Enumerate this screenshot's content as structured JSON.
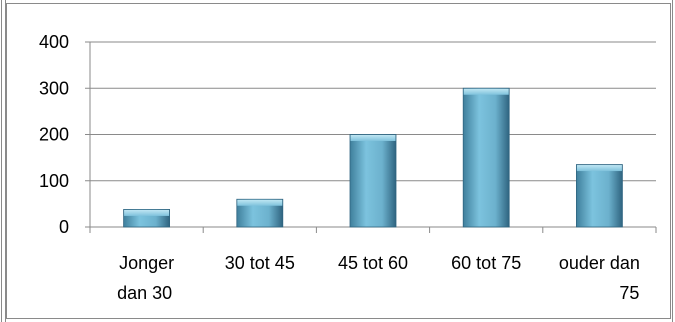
{
  "chart_data": {
    "type": "bar",
    "categories": [
      [
        "Jonger",
        "dan 30"
      ],
      [
        "30 tot 45"
      ],
      [
        "45 tot 60"
      ],
      [
        "60 tot 75"
      ],
      [
        "ouder dan",
        "75"
      ]
    ],
    "values": [
      38,
      60,
      200,
      300,
      135
    ],
    "ylim": [
      0,
      400
    ],
    "yticks": [
      "0",
      "100",
      "200",
      "300",
      "400"
    ],
    "grid": true,
    "legend": "none",
    "bar_color": "#6fb3cf"
  }
}
